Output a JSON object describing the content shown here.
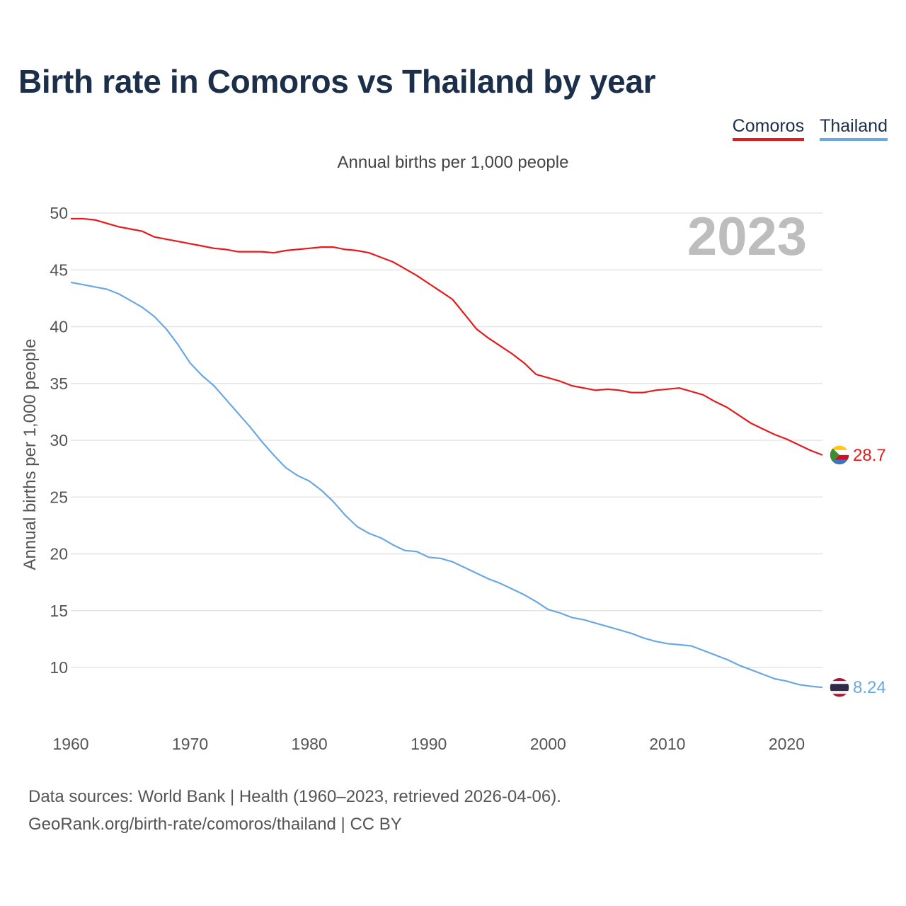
{
  "title": "Birth rate in Comoros vs Thailand by year",
  "legend": [
    {
      "label": "Comoros",
      "color": "#e8191a"
    },
    {
      "label": "Thailand",
      "color": "#6aa8e4"
    }
  ],
  "subtitle": "Annual births per 1,000 people",
  "year_overlay": "2023",
  "footer": {
    "line1": "Data sources: World Bank | Health (1960–2023, retrieved 2026-04-06).",
    "line2": "GeoRank.org/birth-rate/comoros/thailand | CC BY"
  },
  "chart_data": {
    "type": "line",
    "title": "Birth rate in Comoros vs Thailand by year",
    "xlabel": "",
    "ylabel": "Annual births per 1,000 people",
    "xlim": [
      1960,
      2023
    ],
    "ylim": [
      5,
      51
    ],
    "x_ticks": [
      1960,
      1970,
      1980,
      1990,
      2000,
      2010,
      2020
    ],
    "y_ticks": [
      10,
      15,
      20,
      25,
      30,
      35,
      40,
      45,
      50
    ],
    "grid": true,
    "legend_position": "top-right",
    "x": [
      1960,
      1961,
      1962,
      1963,
      1964,
      1965,
      1966,
      1967,
      1968,
      1969,
      1970,
      1971,
      1972,
      1973,
      1974,
      1975,
      1976,
      1977,
      1978,
      1979,
      1980,
      1981,
      1982,
      1983,
      1984,
      1985,
      1986,
      1987,
      1988,
      1989,
      1990,
      1991,
      1992,
      1993,
      1994,
      1995,
      1996,
      1997,
      1998,
      1999,
      2000,
      2001,
      2002,
      2003,
      2004,
      2005,
      2006,
      2007,
      2008,
      2009,
      2010,
      2011,
      2012,
      2013,
      2014,
      2015,
      2016,
      2017,
      2018,
      2019,
      2020,
      2021,
      2022,
      2023
    ],
    "series": [
      {
        "name": "Comoros",
        "color": "#e8191a",
        "end_label": "28.7",
        "flag_icon": "comoros-flag-icon",
        "values": [
          49.5,
          49.5,
          49.4,
          49.1,
          48.8,
          48.6,
          48.4,
          47.9,
          47.7,
          47.5,
          47.3,
          47.1,
          46.9,
          46.8,
          46.6,
          46.6,
          46.6,
          46.5,
          46.7,
          46.8,
          46.9,
          47.0,
          47.0,
          46.8,
          46.7,
          46.5,
          46.1,
          45.7,
          45.1,
          44.5,
          43.8,
          43.1,
          42.4,
          41.1,
          39.8,
          39.0,
          38.3,
          37.6,
          36.8,
          35.8,
          35.5,
          35.2,
          34.8,
          34.6,
          34.4,
          34.5,
          34.4,
          34.2,
          34.2,
          34.4,
          34.5,
          34.6,
          34.3,
          34.0,
          33.4,
          32.9,
          32.2,
          31.5,
          31.0,
          30.5,
          30.1,
          29.6,
          29.1,
          28.7
        ]
      },
      {
        "name": "Thailand",
        "color": "#6aa8e4",
        "end_label": "8.24",
        "flag_icon": "thailand-flag-icon",
        "values": [
          43.9,
          43.7,
          43.5,
          43.3,
          42.9,
          42.3,
          41.7,
          40.9,
          39.8,
          38.4,
          36.8,
          35.7,
          34.8,
          33.6,
          32.4,
          31.2,
          29.9,
          28.7,
          27.6,
          26.9,
          26.4,
          25.6,
          24.6,
          23.4,
          22.4,
          21.8,
          21.4,
          20.8,
          20.3,
          20.2,
          19.7,
          19.6,
          19.3,
          18.8,
          18.3,
          17.8,
          17.4,
          16.9,
          16.4,
          15.8,
          15.1,
          14.8,
          14.4,
          14.2,
          13.9,
          13.6,
          13.3,
          13.0,
          12.6,
          12.3,
          12.1,
          12.0,
          11.9,
          11.5,
          11.1,
          10.7,
          10.2,
          9.8,
          9.4,
          9.0,
          8.8,
          8.5,
          8.35,
          8.24
        ]
      }
    ]
  }
}
